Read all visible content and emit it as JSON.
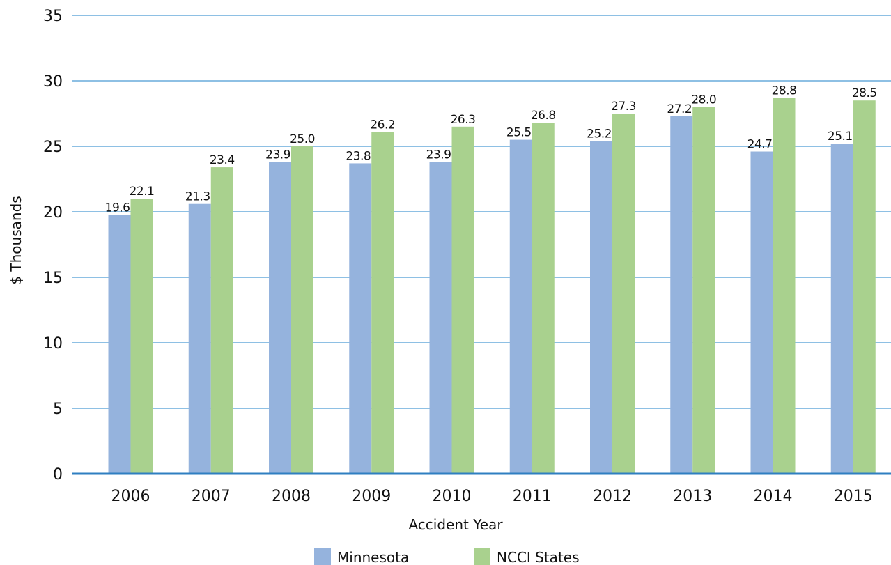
{
  "chart_data": {
    "type": "bar",
    "categories": [
      "2006",
      "2007",
      "2008",
      "2009",
      "2010",
      "2011",
      "2012",
      "2013",
      "2014",
      "2015"
    ],
    "series": [
      {
        "name": "Minnesota",
        "color": "#95b3dd",
        "values": [
          19.6,
          21.3,
          23.9,
          23.8,
          23.9,
          25.5,
          25.2,
          27.2,
          24.7,
          25.1
        ],
        "display_values": [
          19.75,
          20.6,
          23.8,
          23.7,
          23.8,
          25.5,
          25.4,
          27.3,
          24.6,
          25.2
        ]
      },
      {
        "name": "NCCI States",
        "color": "#a9d18e",
        "values": [
          22.1,
          23.4,
          25.0,
          26.2,
          26.3,
          26.8,
          27.3,
          28.0,
          28.8,
          28.5
        ],
        "display_values": [
          21.0,
          23.4,
          25.0,
          26.1,
          26.5,
          26.8,
          27.5,
          28.0,
          28.7,
          28.5
        ]
      }
    ],
    "data_labels": [
      [
        "19.6",
        "21.3",
        "23.9",
        "23.8",
        "23.9",
        "25.5",
        "25.2",
        "27.2",
        "24.7",
        "25.1"
      ],
      [
        "22.1",
        "23.4",
        "25.0",
        "26.2",
        "26.3",
        "26.8",
        "27.3",
        "28.0",
        "28.8",
        "28.5"
      ]
    ],
    "xlabel": "Accident Year",
    "ylabel": "$ Thousands",
    "ylim": [
      0,
      35
    ],
    "yticks": [
      "0",
      "5",
      "10",
      "15",
      "20",
      "25",
      "30",
      "35"
    ],
    "grid": true,
    "gridline_color": "#4a9ad4",
    "legend_position": "bottom-center"
  }
}
